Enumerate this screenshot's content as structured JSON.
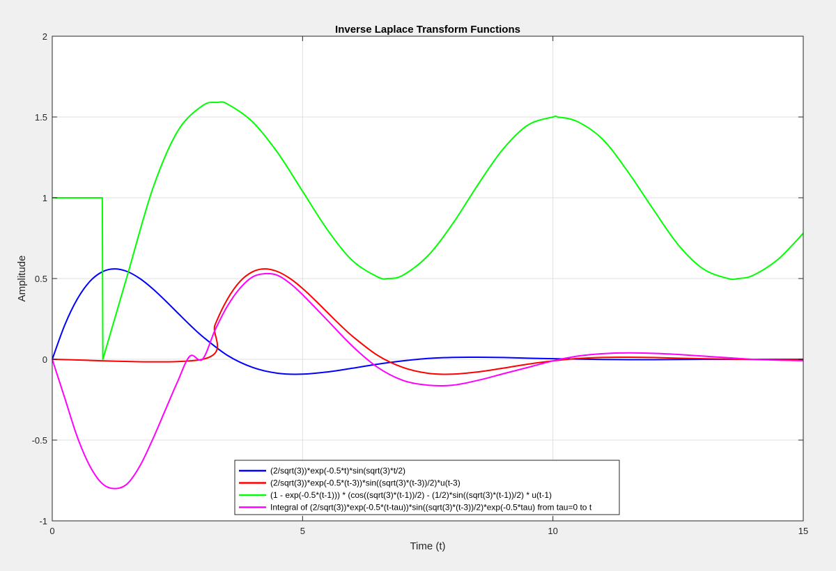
{
  "chart_data": {
    "type": "line",
    "title": "Inverse Laplace Transform Functions",
    "xlabel": "Time (t)",
    "ylabel": "Amplitude",
    "xlim": [
      0,
      15
    ],
    "ylim": [
      -1,
      2
    ],
    "xticks": [
      0,
      5,
      10,
      15
    ],
    "yticks": [
      -1,
      -0.5,
      0,
      0.5,
      1,
      1.5,
      2
    ],
    "xtick_labels": [
      "0",
      "5",
      "10",
      "15"
    ],
    "ytick_labels": [
      "-1",
      "-0.5",
      "0",
      "0.5",
      "1",
      "1.5",
      "2"
    ],
    "grid": true,
    "legend_position": "bottom-center",
    "series": [
      {
        "name": "(2/sqrt(3))*exp(-0.5*t)*sin(sqrt(3)*t/2)",
        "color": "#0000ff",
        "x": [
          0,
          0.25,
          0.5,
          0.75,
          1,
          1.25,
          1.5,
          1.75,
          2,
          2.25,
          2.5,
          2.75,
          3,
          3.5,
          4,
          4.5,
          5,
          5.5,
          6,
          6.5,
          7,
          7.5,
          8,
          8.5,
          9,
          9.5,
          10,
          11,
          12,
          13,
          14,
          15
        ],
        "values": [
          0,
          0.213,
          0.373,
          0.482,
          0.542,
          0.56,
          0.543,
          0.5,
          0.439,
          0.366,
          0.289,
          0.213,
          0.142,
          0.024,
          -0.05,
          -0.086,
          -0.092,
          -0.078,
          -0.055,
          -0.03,
          -0.01,
          0.005,
          0.012,
          0.013,
          0.011,
          0.007,
          0.004,
          -0.001,
          -0.002,
          0.0,
          0.0,
          0.0
        ]
      },
      {
        "name": "(2/sqrt(3))*exp(-0.5*(t-3))*sin((sqrt(3)*(t-3))/2)*u(t-3)",
        "color": "#ff0000",
        "x": [
          0,
          3,
          3.25,
          3.5,
          3.75,
          4,
          4.25,
          4.5,
          4.75,
          5,
          5.25,
          5.5,
          5.75,
          6,
          6.5,
          7,
          7.5,
          8,
          8.5,
          9,
          9.5,
          10,
          10.5,
          11,
          11.5,
          12,
          12.5,
          13,
          14,
          15
        ],
        "values": [
          0,
          0,
          0.213,
          0.373,
          0.482,
          0.542,
          0.56,
          0.543,
          0.5,
          0.439,
          0.366,
          0.289,
          0.213,
          0.142,
          0.024,
          -0.05,
          -0.086,
          -0.092,
          -0.078,
          -0.055,
          -0.03,
          -0.01,
          0.005,
          0.012,
          0.013,
          0.011,
          0.007,
          0.004,
          -0.001,
          -0.002
        ]
      },
      {
        "name": "(1 - exp(-0.5*(t-1))) * (cos((sqrt(3)*(t-1))/2) - (1/2)*sin((sqrt(3)*(t-1))/2) * u(t-1)",
        "color": "#00ff00",
        "x": [
          0,
          1,
          1.01,
          1.5,
          2,
          2.5,
          3,
          3.3,
          3.5,
          4,
          4.5,
          5,
          5.5,
          6,
          6.5,
          6.7,
          7,
          7.5,
          8,
          8.5,
          9,
          9.5,
          10,
          10.1,
          10.5,
          11,
          11.5,
          12,
          12.5,
          13,
          13.5,
          13.7,
          14,
          14.5,
          15
        ],
        "values": [
          1,
          1,
          0,
          0.52,
          1.05,
          1.41,
          1.57,
          1.59,
          1.58,
          1.47,
          1.28,
          1.04,
          0.8,
          0.61,
          0.51,
          0.5,
          0.52,
          0.64,
          0.84,
          1.08,
          1.3,
          1.45,
          1.5,
          1.5,
          1.47,
          1.36,
          1.16,
          0.93,
          0.71,
          0.56,
          0.5,
          0.5,
          0.52,
          0.62,
          0.78
        ]
      },
      {
        "name": "Integral of (2/sqrt(3))*exp(-0.5*(t-tau))*sin((sqrt(3)*(t-3))/2)*exp(-0.5*tau) from tau=0 to t",
        "color": "#ff00ff",
        "x": [
          0,
          0.25,
          0.5,
          0.75,
          1,
          1.25,
          1.5,
          1.75,
          2,
          2.25,
          2.5,
          2.75,
          3,
          3.25,
          3.5,
          3.75,
          4,
          4.25,
          4.5,
          4.75,
          5,
          5.5,
          6,
          6.5,
          7,
          7.5,
          8,
          8.5,
          9,
          9.5,
          10,
          10.5,
          11,
          11.5,
          12,
          12.5,
          13,
          13.5,
          14,
          14.5,
          15
        ],
        "values": [
          0,
          -0.24,
          -0.48,
          -0.66,
          -0.77,
          -0.8,
          -0.77,
          -0.66,
          -0.5,
          -0.32,
          -0.14,
          0.02,
          0.0,
          0.18,
          0.33,
          0.44,
          0.51,
          0.53,
          0.52,
          0.47,
          0.4,
          0.24,
          0.08,
          -0.05,
          -0.13,
          -0.16,
          -0.16,
          -0.13,
          -0.09,
          -0.05,
          -0.01,
          0.02,
          0.035,
          0.04,
          0.037,
          0.03,
          0.02,
          0.01,
          0.0,
          -0.005,
          -0.008
        ]
      }
    ]
  }
}
